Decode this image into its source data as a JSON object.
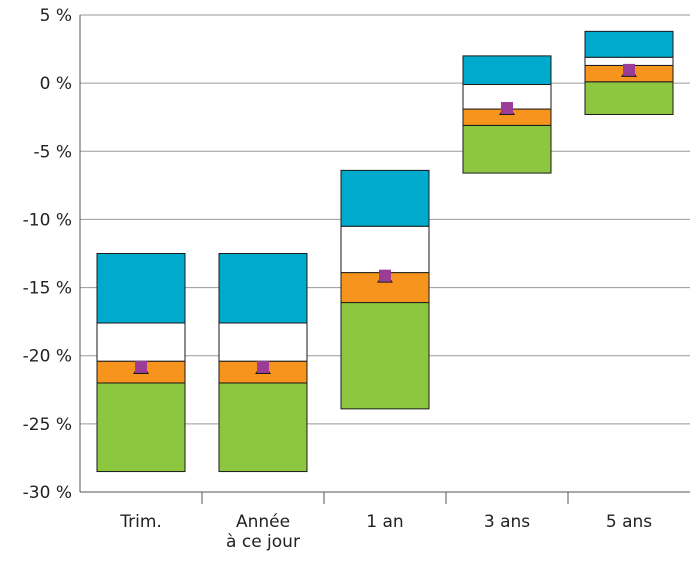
{
  "chart_data": {
    "type": "bar",
    "subtype": "floating-stacked-quartile",
    "categories": [
      {
        "lines": [
          "Trim."
        ]
      },
      {
        "lines": [
          "Année",
          "à ce jour"
        ]
      },
      {
        "lines": [
          "1 an"
        ]
      },
      {
        "lines": [
          "3 ans"
        ]
      },
      {
        "lines": [
          "5 ans"
        ]
      }
    ],
    "y_ticks": [
      5,
      0,
      -5,
      -10,
      -15,
      -20,
      -25,
      -30
    ],
    "y_tick_labels": [
      "5 %",
      "0 %",
      "-5 %",
      "-10 %",
      "-15 %",
      "-20 %",
      "-25 %",
      "-30 %"
    ],
    "ylim": [
      -30,
      5
    ],
    "grid": "horizontal",
    "segments": [
      {
        "color": "#8dc63f",
        "role": "bottom quartile"
      },
      {
        "color": "#f7941d",
        "role": "third quartile"
      },
      {
        "color": "#ffffff",
        "role": "second quartile"
      },
      {
        "color": "#00aacc",
        "role": "top quartile"
      }
    ],
    "bands": [
      [
        -28.5,
        -22.0,
        -20.4,
        -17.6,
        -12.5
      ],
      [
        -28.5,
        -22.0,
        -20.4,
        -17.6,
        -12.5
      ],
      [
        -23.9,
        -16.1,
        -13.9,
        -10.5,
        -6.4
      ],
      [
        -6.6,
        -3.1,
        -1.9,
        -0.1,
        2.0
      ],
      [
        -2.3,
        0.1,
        1.3,
        1.9,
        3.8
      ]
    ],
    "markers": [
      -20.9,
      -20.9,
      -14.2,
      -1.9,
      0.9
    ],
    "marker_color": "#9b3d97",
    "marker_base_color": "#1a1a1a"
  }
}
